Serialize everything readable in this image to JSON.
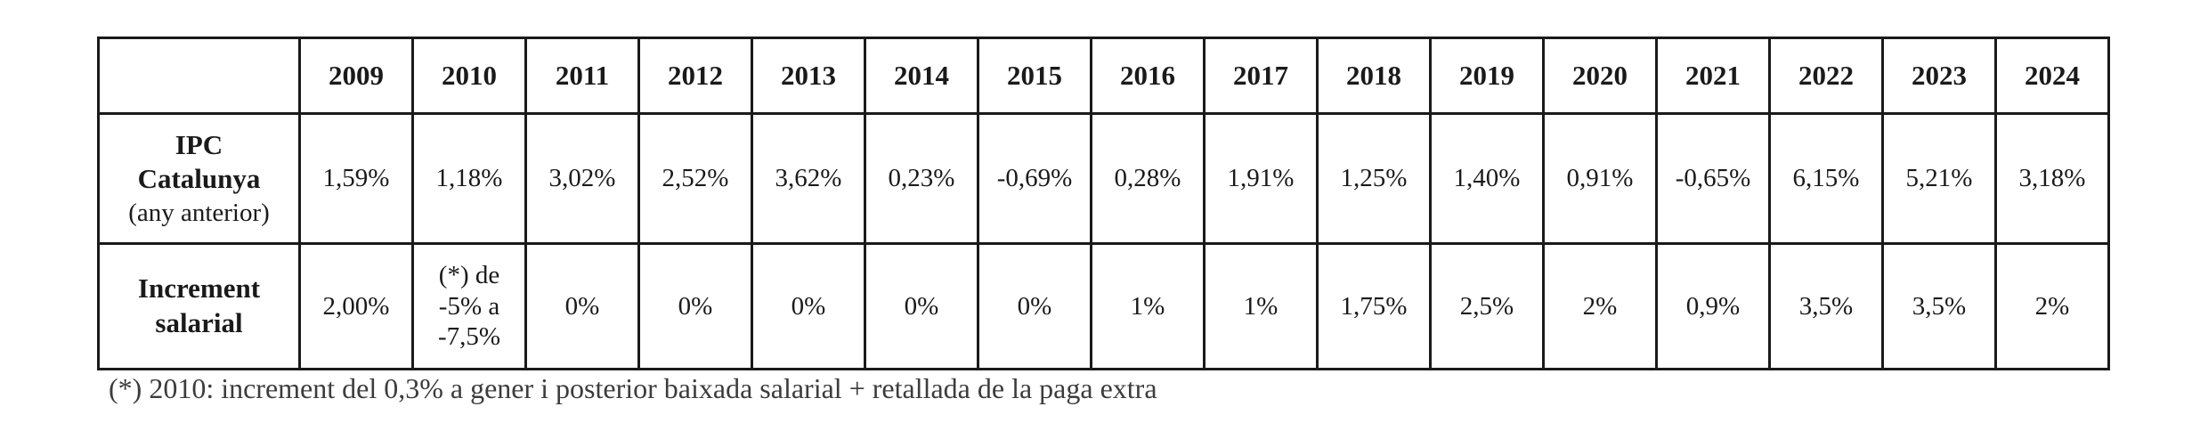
{
  "table": {
    "corner_label": "",
    "years": [
      "2009",
      "2010",
      "2011",
      "2012",
      "2013",
      "2014",
      "2015",
      "2016",
      "2017",
      "2018",
      "2019",
      "2020",
      "2021",
      "2022",
      "2023",
      "2024"
    ],
    "ipc_row": {
      "label_line1": "IPC",
      "label_line2": "Catalunya",
      "label_sub": "(any anterior)",
      "values": [
        "1,59%",
        "1,18%",
        "3,02%",
        "2,52%",
        "3,62%",
        "0,23%",
        "-0,69%",
        "0,28%",
        "1,91%",
        "1,25%",
        "1,40%",
        "0,91%",
        "-0,65%",
        "6,15%",
        "5,21%",
        "3,18%"
      ]
    },
    "salary_row": {
      "label_line1": "Increment",
      "label_line2": "salarial",
      "values": [
        "2,00%",
        "",
        "0%",
        "0%",
        "0%",
        "0%",
        "0%",
        "1%",
        "1%",
        "1,75%",
        "2,5%",
        "2%",
        "0,9%",
        "3,5%",
        "3,5%",
        "2%"
      ],
      "value_2010_lines": [
        "(*) de",
        "-5% a",
        "-7,5%"
      ]
    }
  },
  "footnote": "(*) 2010: increment del 0,3% a gener i posterior baixada salarial + retallada de la paga extra"
}
